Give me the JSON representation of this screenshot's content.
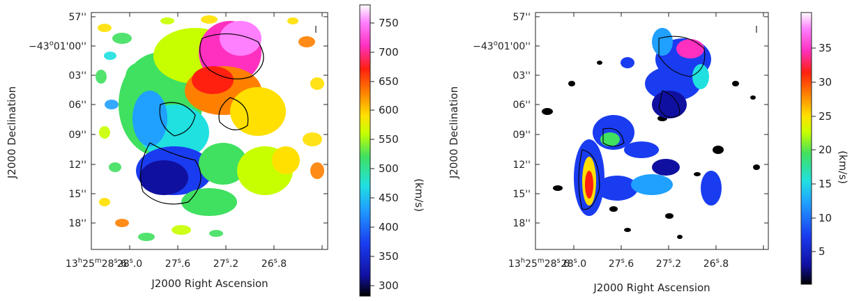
{
  "chart_data": [
    {
      "type": "heatmap",
      "xlabel": "J2000 Right Ascension",
      "ylabel": "J2000 Declination",
      "x_ticks": [
        "13h25m28s.6",
        "28s.0",
        "27s.6",
        "27s.2",
        "26s.8"
      ],
      "y_ticks": [
        "57''",
        "−43°01'00''",
        "03''",
        "06''",
        "09''",
        "12''",
        "15''",
        "18''"
      ],
      "colorbar": {
        "label": "(km/s)",
        "range": [
          285,
          785
        ],
        "ticks": [
          300,
          350,
          400,
          450,
          500,
          550,
          600,
          650,
          700,
          750
        ]
      }
    },
    {
      "type": "heatmap",
      "xlabel": "J2000 Right Ascension",
      "ylabel": "J2000 Declination",
      "x_ticks": [
        "13h25m28s.6",
        "28s.0",
        "27s.6",
        "27s.2",
        "26s.8"
      ],
      "y_ticks": [
        "57''",
        "−43°01'00''",
        "03''",
        "06''",
        "09''",
        "12''",
        "15''",
        "18''"
      ],
      "colorbar": {
        "label": "(km/s)",
        "range": [
          0,
          40
        ],
        "ticks": [
          5,
          10,
          15,
          20,
          25,
          30,
          35
        ]
      }
    }
  ],
  "ui": {
    "left": {
      "ylabel": "J2000 Declination",
      "xlabel": "J2000 Right Ascension",
      "cbar_label": "(km/s)",
      "ra_h": "13",
      "ra_hu": "h",
      "ra_m": "25",
      "ra_mu": "m",
      "ra_s": "28",
      "ra_su": "s",
      "ra_frac": ".6",
      "xt1_s": "28",
      "xt1_u": "s",
      "xt1_f": ".0",
      "xt2_s": "27",
      "xt2_u": "s",
      "xt2_f": ".6",
      "xt3_s": "27",
      "xt3_u": "s",
      "xt3_f": ".2",
      "xt4_s": "26",
      "xt4_u": "s",
      "xt4_f": ".8",
      "dec_a": "−43",
      "dec_b": "o",
      "dec_c": "01'00''",
      "yt0": "57''",
      "yt2": "03''",
      "yt3": "06''",
      "yt4": "09''",
      "yt5": "12''",
      "yt6": "15''",
      "yt7": "18''",
      "cb0": "750",
      "cb1": "700",
      "cb2": "650",
      "cb3": "600",
      "cb4": "550",
      "cb5": "500",
      "cb6": "450",
      "cb7": "400",
      "cb8": "350",
      "cb9": "300"
    },
    "right": {
      "ylabel": "J2000 Declination",
      "xlabel": "J2000 Right Ascension",
      "cbar_label": "(km/s)",
      "ra_h": "13",
      "ra_hu": "h",
      "ra_m": "25",
      "ra_mu": "m",
      "ra_s": "28",
      "ra_su": "s",
      "ra_frac": ".6",
      "xt1_s": "28",
      "xt1_u": "s",
      "xt1_f": ".0",
      "xt2_s": "27",
      "xt2_u": "s",
      "xt2_f": ".6",
      "xt3_s": "27",
      "xt3_u": "s",
      "xt3_f": ".2",
      "xt4_s": "26",
      "xt4_u": "s",
      "xt4_f": ".8",
      "dec_a": "−43",
      "dec_b": "o",
      "dec_c": "01'00''",
      "yt0": "57''",
      "yt2": "03''",
      "yt3": "06''",
      "yt4": "09''",
      "yt5": "12''",
      "yt6": "15''",
      "yt7": "18''",
      "cb0": "35",
      "cb1": "30",
      "cb2": "25",
      "cb3": "20",
      "cb4": "15",
      "cb5": "10",
      "cb6": "5"
    },
    "colors": {
      "rainbow": [
        "#000000",
        "#1010a0",
        "#1a3cf0",
        "#20a0ff",
        "#20e0e0",
        "#40e060",
        "#c8ff00",
        "#ffe000",
        "#ff8000",
        "#ff2010",
        "#ff30c0",
        "#ff80ff",
        "#ffffff"
      ]
    }
  }
}
